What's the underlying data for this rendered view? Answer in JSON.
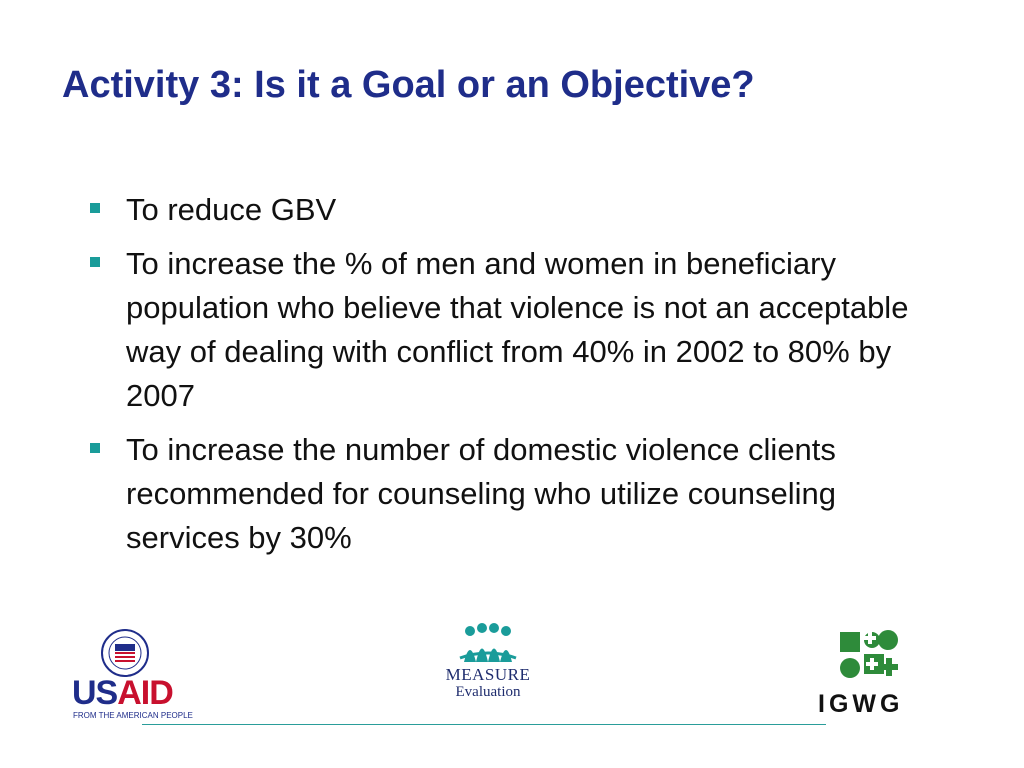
{
  "slide": {
    "title": "Activity 3: Is it a Goal or an Objective?",
    "accent_color": "#1f2d8a",
    "bullet_color": "#1a9c9a",
    "bullets": [
      "To reduce GBV",
      "To increase the % of men and women in beneficiary population who believe that violence is not an acceptable way of dealing with conflict from 40% in 2002 to 80% by 2007",
      "To increase the number of domestic violence clients recommended for counseling who utilize counseling services by 30%"
    ]
  },
  "footer": {
    "usaid": {
      "word_a": "US",
      "word_b": "AID",
      "tagline": "FROM THE AMERICAN PEOPLE"
    },
    "measure": {
      "name": "MEASURE",
      "sub": "Evaluation"
    },
    "igwg": {
      "name": "IGWG"
    }
  }
}
